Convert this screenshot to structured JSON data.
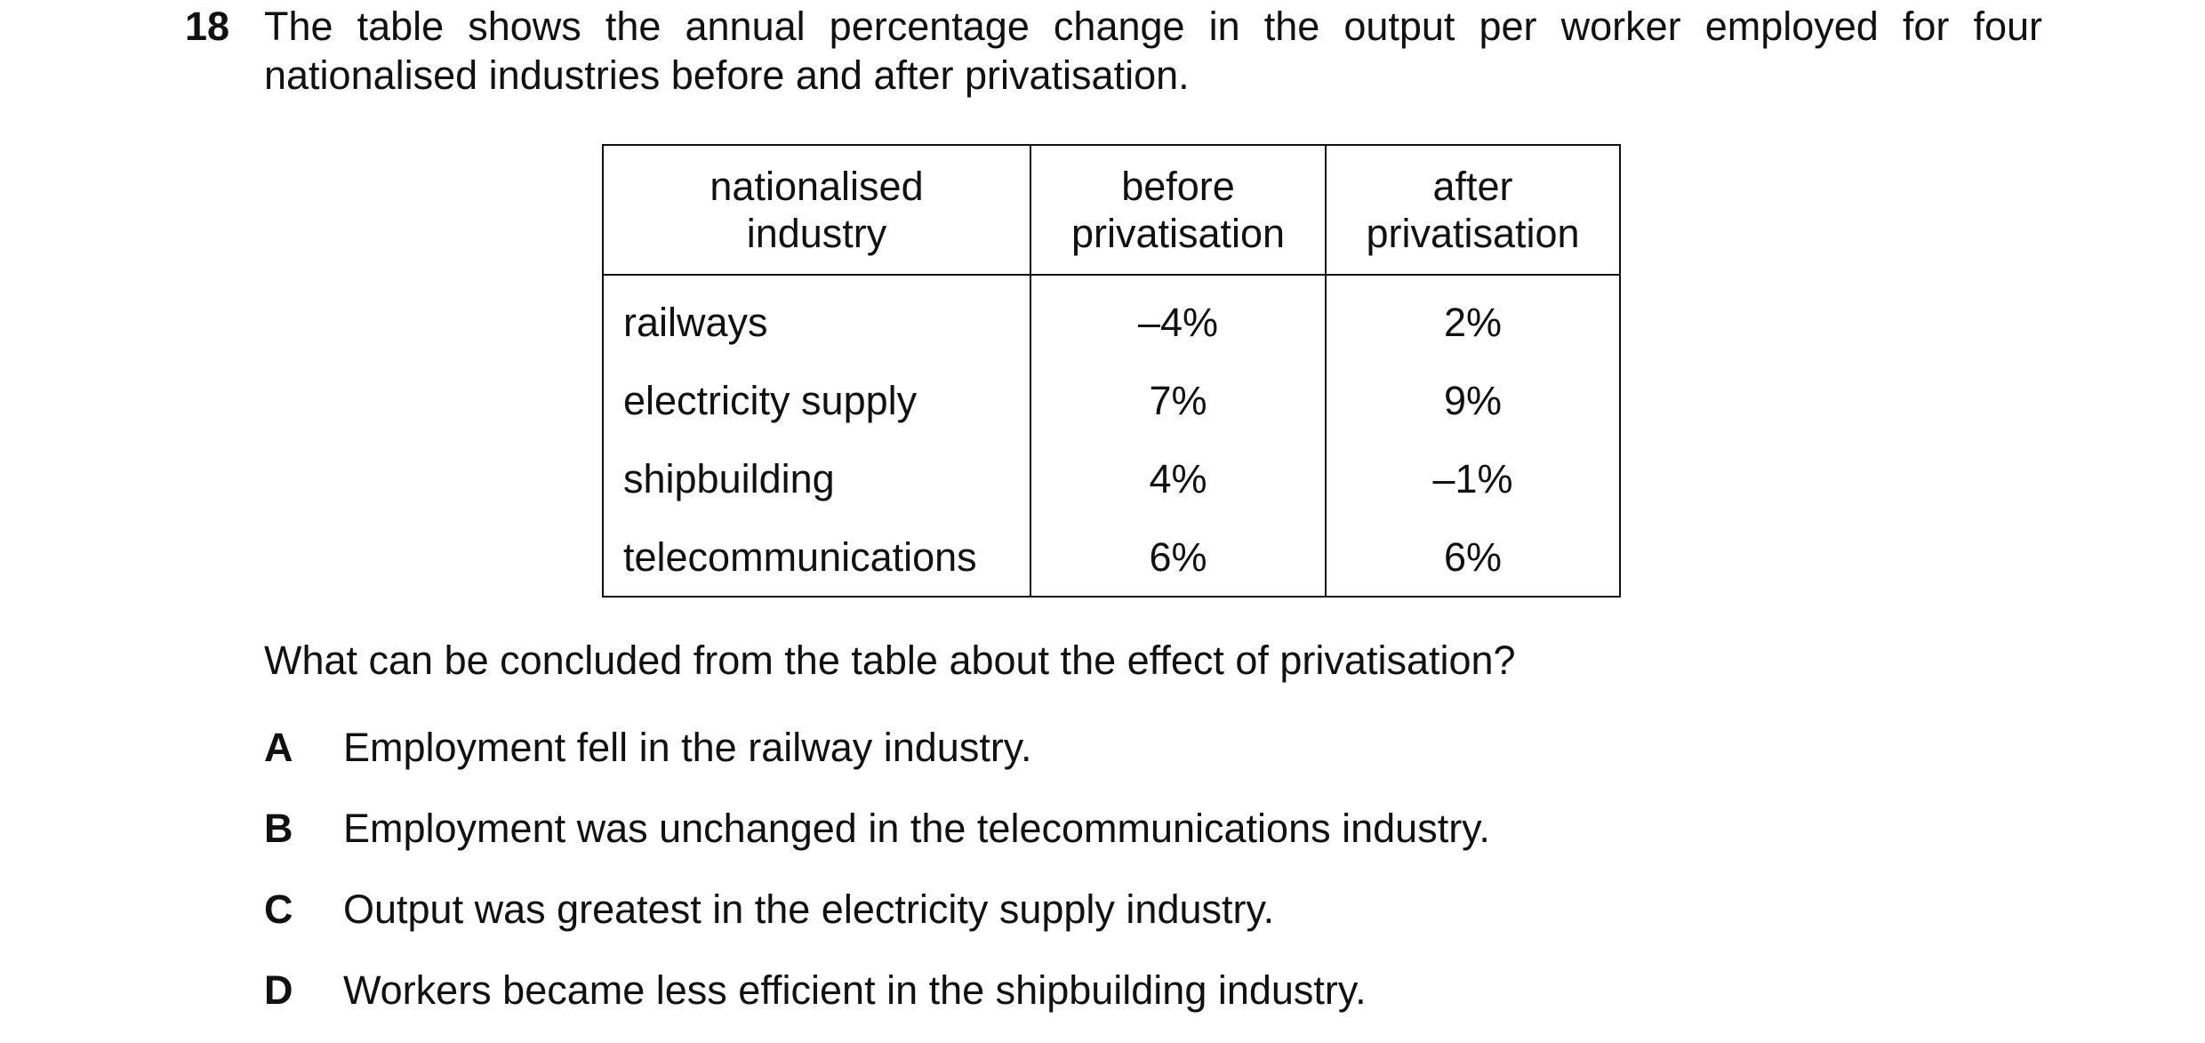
{
  "question_number": "18",
  "stem": "The table shows the annual percentage change in the output per worker employed for four nationalised industries before and after privatisation.",
  "table": {
    "headers": [
      [
        "nationalised",
        "industry"
      ],
      [
        "before",
        "privatisation"
      ],
      [
        "after",
        "privatisation"
      ]
    ],
    "rows": [
      {
        "industry": "railways",
        "before": "–4%",
        "after": "2%"
      },
      {
        "industry": "electricity supply",
        "before": "7%",
        "after": "9%"
      },
      {
        "industry": "shipbuilding",
        "before": "4%",
        "after": "–1%"
      },
      {
        "industry": "telecommunications",
        "before": "6%",
        "after": "6%"
      }
    ]
  },
  "question": "What can be concluded from the table about the effect of privatisation?",
  "options": [
    {
      "letter": "A",
      "text": "Employment fell in the railway industry."
    },
    {
      "letter": "B",
      "text": "Employment was unchanged in the telecommunications industry."
    },
    {
      "letter": "C",
      "text": "Output was greatest in the electricity supply industry."
    },
    {
      "letter": "D",
      "text": "Workers became less efficient in the shipbuilding industry."
    }
  ]
}
